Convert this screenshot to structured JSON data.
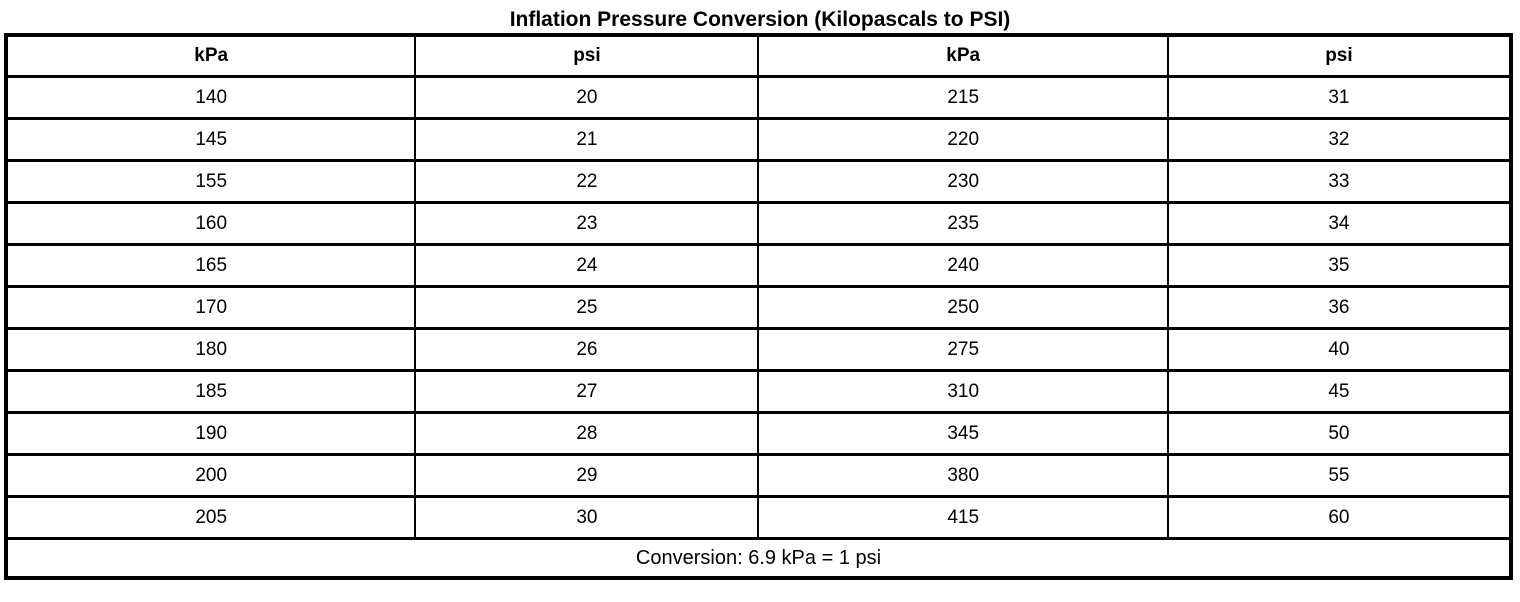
{
  "title": "Inflation Pressure Conversion (Kilopascals to PSI)",
  "table": {
    "headers": [
      "kPa",
      "psi",
      "kPa",
      "psi"
    ],
    "rows": [
      [
        "140",
        "20",
        "215",
        "31"
      ],
      [
        "145",
        "21",
        "220",
        "32"
      ],
      [
        "155",
        "22",
        "230",
        "33"
      ],
      [
        "160",
        "23",
        "235",
        "34"
      ],
      [
        "165",
        "24",
        "240",
        "35"
      ],
      [
        "170",
        "25",
        "250",
        "36"
      ],
      [
        "180",
        "26",
        "275",
        "40"
      ],
      [
        "185",
        "27",
        "310",
        "45"
      ],
      [
        "190",
        "28",
        "345",
        "50"
      ],
      [
        "200",
        "29",
        "380",
        "55"
      ],
      [
        "205",
        "30",
        "415",
        "60"
      ]
    ],
    "footer": "Conversion: 6.9 kPa = 1 psi"
  },
  "colors": {
    "border": "#000000",
    "background": "#ffffff",
    "text": "#000000"
  }
}
